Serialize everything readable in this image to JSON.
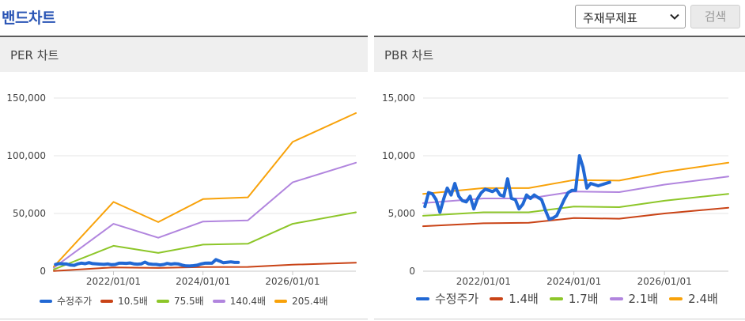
{
  "header": {
    "title": "밴드차트",
    "select_value": "주재무제표",
    "search_label": "검색"
  },
  "chart_data": [
    {
      "type": "line",
      "panel_title": "PER 차트",
      "ylim": [
        0,
        150000
      ],
      "xlim": [
        "2020-09-01",
        "2027-06-01"
      ],
      "y_ticks": [
        0,
        50000,
        100000,
        150000
      ],
      "y_tick_labels": [
        "0",
        "50,000",
        "100,000",
        "150,000"
      ],
      "x_ticks": [
        "2022-01-01",
        "2024-01-01",
        "2026-01-01"
      ],
      "x_tick_labels": [
        "2022/01/01",
        "2024/01/01",
        "2026/01/01"
      ],
      "grid": "horizontal",
      "legend_position": "bottom",
      "series": [
        {
          "name": "수정주가",
          "color": "#2168d4",
          "width": 4,
          "x": [
            "2020-09-15",
            "2020-10-15",
            "2020-11-15",
            "2020-12-15",
            "2021-01-15",
            "2021-02-15",
            "2021-03-15",
            "2021-04-15",
            "2021-05-15",
            "2021-06-15",
            "2021-07-15",
            "2021-08-15",
            "2021-09-15",
            "2021-10-15",
            "2021-11-15",
            "2021-12-15",
            "2022-01-15",
            "2022-02-15",
            "2022-03-15",
            "2022-04-15",
            "2022-05-15",
            "2022-06-15",
            "2022-07-15",
            "2022-08-15",
            "2022-09-15",
            "2022-10-15",
            "2022-11-15",
            "2022-12-15",
            "2023-01-15",
            "2023-02-15",
            "2023-03-15",
            "2023-04-15",
            "2023-05-15",
            "2023-06-15",
            "2023-07-15",
            "2023-08-15",
            "2023-09-15",
            "2023-10-15",
            "2023-11-15",
            "2023-12-15",
            "2024-01-15",
            "2024-02-15",
            "2024-03-15",
            "2024-04-15",
            "2024-05-15",
            "2024-06-15",
            "2024-07-15",
            "2024-08-15",
            "2024-09-15",
            "2024-10-15"
          ],
          "values": [
            5800,
            6600,
            6400,
            6200,
            5300,
            5100,
            6300,
            7000,
            6500,
            7400,
            6600,
            6400,
            6100,
            5900,
            6300,
            5600,
            5800,
            6900,
            6900,
            6800,
            7100,
            6400,
            6100,
            6300,
            7900,
            6300,
            6000,
            5900,
            5400,
            5800,
            6700,
            6100,
            6500,
            6200,
            5300,
            4600,
            4500,
            4800,
            5200,
            6200,
            6900,
            7000,
            6900,
            10000,
            8800,
            7300,
            7700,
            8100,
            7600,
            7600
          ]
        },
        {
          "name": "10.5배",
          "color": "#c94316",
          "width": 2,
          "x": [
            "2020-09-01",
            "2022-01-01",
            "2023-01-01",
            "2024-01-01",
            "2025-01-01",
            "2026-01-01",
            "2027-06-01"
          ],
          "values": [
            200,
            3300,
            2800,
            3600,
            3700,
            5600,
            7300
          ]
        },
        {
          "name": "75.5배",
          "color": "#8dc629",
          "width": 2,
          "x": [
            "2020-09-01",
            "2022-01-01",
            "2023-01-01",
            "2024-01-01",
            "2025-01-01",
            "2026-01-01",
            "2027-06-01"
          ],
          "values": [
            1500,
            22000,
            15800,
            23000,
            23800,
            41000,
            51000
          ]
        },
        {
          "name": "140.4배",
          "color": "#b185de",
          "width": 2,
          "x": [
            "2020-09-01",
            "2022-01-01",
            "2023-01-01",
            "2024-01-01",
            "2025-01-01",
            "2026-01-01",
            "2027-06-01"
          ],
          "values": [
            3000,
            41000,
            29000,
            43000,
            44000,
            77000,
            94000
          ]
        },
        {
          "name": "205.4배",
          "color": "#f8a20a",
          "width": 2,
          "x": [
            "2020-09-01",
            "2022-01-01",
            "2023-01-01",
            "2024-01-01",
            "2025-01-01",
            "2026-01-01",
            "2027-06-01"
          ],
          "values": [
            4000,
            60000,
            42500,
            62500,
            64000,
            112000,
            137000
          ]
        }
      ]
    },
    {
      "type": "line",
      "panel_title": "PBR 차트",
      "ylim": [
        0,
        15000
      ],
      "xlim": [
        "2020-09-01",
        "2027-06-01"
      ],
      "y_ticks": [
        0,
        5000,
        10000,
        15000
      ],
      "y_tick_labels": [
        "0",
        "5,000",
        "10,000",
        "15,000"
      ],
      "x_ticks": [
        "2022-01-01",
        "2024-01-01",
        "2026-01-01"
      ],
      "x_tick_labels": [
        "2022/01/01",
        "2024/01/01",
        "2026/01/01"
      ],
      "grid": "horizontal",
      "legend_position": "bottom",
      "series": [
        {
          "name": "수정주가",
          "color": "#2168d4",
          "width": 4,
          "x": [
            "2020-09-15",
            "2020-10-15",
            "2020-11-15",
            "2020-12-15",
            "2021-01-15",
            "2021-02-15",
            "2021-03-15",
            "2021-04-15",
            "2021-05-15",
            "2021-06-15",
            "2021-07-15",
            "2021-08-15",
            "2021-09-15",
            "2021-10-15",
            "2021-11-15",
            "2021-12-15",
            "2022-01-15",
            "2022-02-15",
            "2022-03-15",
            "2022-04-15",
            "2022-05-15",
            "2022-06-15",
            "2022-07-15",
            "2022-08-15",
            "2022-09-15",
            "2022-10-15",
            "2022-11-15",
            "2022-12-15",
            "2023-01-15",
            "2023-02-15",
            "2023-03-15",
            "2023-04-15",
            "2023-05-15",
            "2023-06-15",
            "2023-07-15",
            "2023-08-15",
            "2023-09-15",
            "2023-10-15",
            "2023-11-15",
            "2023-12-15",
            "2024-01-15",
            "2024-02-15",
            "2024-03-15",
            "2024-04-15",
            "2024-05-15",
            "2024-06-15",
            "2024-07-15",
            "2024-08-15",
            "2024-09-15",
            "2024-10-15"
          ],
          "values": [
            5600,
            6800,
            6700,
            6200,
            5100,
            6300,
            7200,
            6600,
            7600,
            6500,
            6100,
            6000,
            6500,
            5400,
            6300,
            6800,
            7100,
            7000,
            6900,
            7100,
            6600,
            6500,
            8000,
            6300,
            6200,
            5400,
            5800,
            6600,
            6300,
            6600,
            6400,
            6200,
            5300,
            4500,
            4600,
            4800,
            5500,
            6200,
            6800,
            7000,
            7000,
            10000,
            9000,
            7200,
            7600,
            7500,
            7400,
            7500,
            7600,
            7700
          ]
        },
        {
          "name": "1.4배",
          "color": "#c94316",
          "width": 2,
          "x": [
            "2020-09-01",
            "2022-01-01",
            "2023-01-01",
            "2024-01-01",
            "2025-01-01",
            "2026-01-01",
            "2027-06-01"
          ],
          "values": [
            3900,
            4150,
            4200,
            4600,
            4550,
            5000,
            5500
          ]
        },
        {
          "name": "1.7배",
          "color": "#8dc629",
          "width": 2,
          "x": [
            "2020-09-01",
            "2022-01-01",
            "2023-01-01",
            "2024-01-01",
            "2025-01-01",
            "2026-01-01",
            "2027-06-01"
          ],
          "values": [
            4800,
            5100,
            5100,
            5600,
            5550,
            6100,
            6700
          ]
        },
        {
          "name": "2.1배",
          "color": "#b185de",
          "width": 2,
          "x": [
            "2020-09-01",
            "2022-01-01",
            "2023-01-01",
            "2024-01-01",
            "2025-01-01",
            "2026-01-01",
            "2027-06-01"
          ],
          "values": [
            5900,
            6300,
            6300,
            6900,
            6850,
            7500,
            8200
          ]
        },
        {
          "name": "2.4배",
          "color": "#f8a20a",
          "width": 2,
          "x": [
            "2020-09-01",
            "2022-01-01",
            "2023-01-01",
            "2024-01-01",
            "2025-01-01",
            "2026-01-01",
            "2027-06-01"
          ],
          "values": [
            6700,
            7200,
            7200,
            7900,
            7850,
            8600,
            9400
          ]
        }
      ]
    }
  ]
}
